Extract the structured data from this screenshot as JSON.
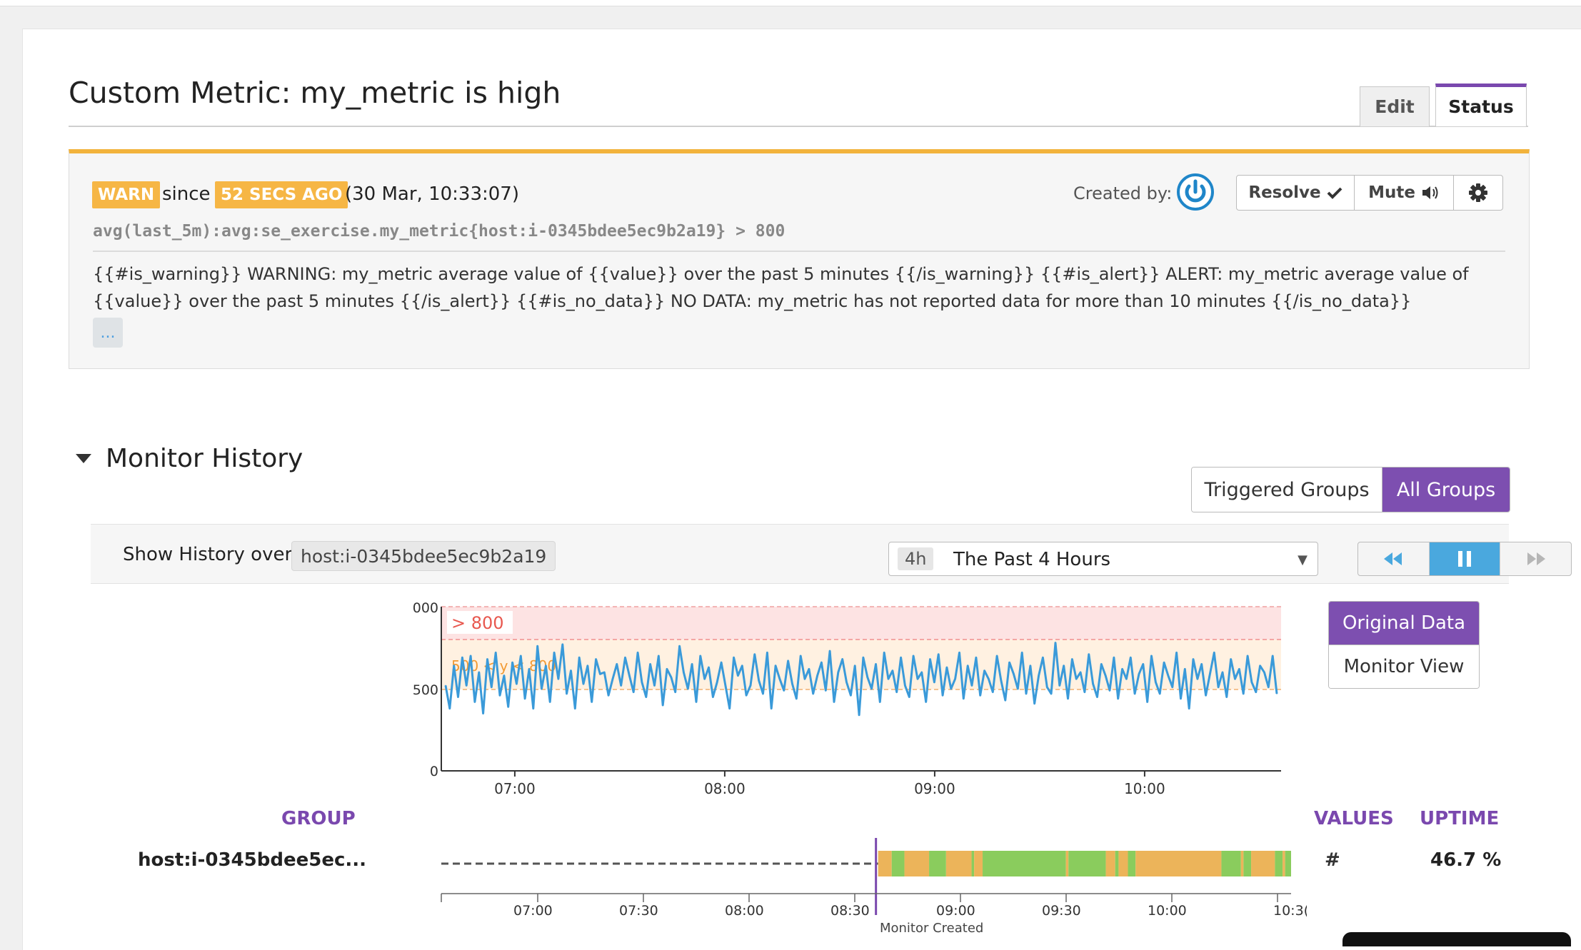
{
  "header": {
    "title": "Custom Metric: my_metric is high"
  },
  "tabs": [
    {
      "label": "Edit"
    },
    {
      "label": "Status",
      "active": true
    }
  ],
  "alert": {
    "state": "WARN",
    "since_label": "since",
    "ago": "52 SECS AGO",
    "timestamp": "(30 Mar, 10:33:07)",
    "query": "avg(last_5m):avg:se_exercise.my_metric{host:i-0345bdee5ec9b2a19} > 800",
    "message": "{{#is_warning}} WARNING: my_metric average value of {{value}} over the past 5 minutes {{/is_warning}} {{#is_alert}} ALERT: my_metric average value of {{value}} over the past 5 minutes {{/is_alert}} {{#is_no_data}} NO DATA: my_metric has not reported data for more than 10 minutes {{/is_no_data}}",
    "more_label": "...",
    "created_by_label": "Created by:",
    "avatar_icon": "power-icon",
    "actions": {
      "resolve": "Resolve",
      "mute": "Mute",
      "settings_icon": "gear-icon"
    },
    "accent_color": "#f2b33c"
  },
  "history": {
    "title": "Monitor History",
    "groups_toggle": {
      "triggered": "Triggered Groups",
      "all": "All Groups",
      "selected": "all"
    },
    "show_history_label": "Show History over",
    "host_tag": "host:i-0345bdee5ec9b2a19",
    "range": {
      "short": "4h",
      "label": "The Past 4 Hours"
    },
    "player_icons": [
      "rewind-icon",
      "pause-icon",
      "fast-forward-icon"
    ],
    "view_toggle": {
      "original": "Original Data",
      "monitor": "Monitor View",
      "selected": "original"
    },
    "columns": {
      "group": "GROUP",
      "values": "VALUES",
      "uptime": "UPTIME"
    },
    "row": {
      "host": "host:i-0345bdee5ec...",
      "values": "#",
      "uptime": "46.7 %"
    }
  },
  "chart_data": [
    {
      "type": "line",
      "x_ticks": [
        "07:00",
        "08:00",
        "09:00",
        "10:00"
      ],
      "y_ticks": [
        "000",
        "500",
        "0"
      ],
      "ylim": [
        0,
        1000
      ],
      "x_range_hours": [
        6.65,
        10.65
      ],
      "thresholds": {
        "alert_label": "> 800",
        "alert": 800,
        "warning_label": "500 < y < 800",
        "warning": 500
      },
      "colors": {
        "line": "#3a9ad9",
        "alert_band": "#fde3e3",
        "warn_band": "#fff1e1"
      },
      "series": [
        {
          "values": [
            520,
            380,
            640,
            450,
            690,
            520,
            700,
            420,
            600,
            350,
            680,
            510,
            720,
            460,
            580,
            390,
            660,
            530,
            700,
            440,
            620,
            380,
            760,
            500,
            640,
            420,
            720,
            560,
            770,
            470,
            610,
            380,
            690,
            530,
            640,
            420,
            680,
            590,
            600,
            460,
            560,
            650,
            520,
            690,
            580,
            480,
            720,
            540,
            450,
            650,
            520,
            700,
            400,
            620,
            570,
            480,
            760,
            600,
            500,
            650,
            420,
            700,
            560,
            630,
            450,
            540,
            660,
            520,
            380,
            690,
            580,
            640,
            460,
            520,
            710,
            550,
            470,
            720,
            380,
            640,
            560,
            490,
            670,
            530,
            440,
            700,
            560,
            620,
            470,
            580,
            660,
            490,
            730,
            420,
            600,
            680,
            540,
            460,
            640,
            340,
            690,
            570,
            500,
            650,
            420,
            720,
            560,
            610,
            480,
            690,
            520,
            450,
            700,
            560,
            600,
            420,
            680,
            540,
            710,
            460,
            630,
            500,
            560,
            720,
            440,
            640,
            520,
            690,
            460,
            610,
            560,
            480,
            700,
            550,
            430,
            660,
            590,
            500,
            720,
            470,
            640,
            410,
            580,
            690,
            510,
            470,
            780,
            520,
            640,
            440,
            680,
            560,
            600,
            480,
            710,
            530,
            450,
            650,
            580,
            490,
            690,
            440,
            620,
            560,
            690,
            470,
            590,
            650,
            420,
            700,
            540,
            470,
            660,
            580,
            510,
            720,
            440,
            620,
            380,
            680,
            560,
            650,
            460,
            590,
            720,
            510,
            600,
            450,
            680,
            560,
            620,
            470,
            700,
            540,
            480,
            640,
            600,
            510,
            700,
            470
          ]
        }
      ]
    },
    {
      "type": "status-timeline",
      "x_ticks": [
        "07:00",
        "07:30",
        "08:00",
        "08:30",
        "09:00",
        "09:30",
        "10:00",
        "10:3("
      ],
      "event_label": "Monitor Created",
      "status_colors": {
        "warn": "#ecb45a",
        "ok": "#8acc5d",
        "no_data": "#555555",
        "event": "#7a48ae"
      },
      "segments": [
        [
          "no_data",
          0,
          0.514
        ],
        [
          "warn",
          0.514,
          0.53
        ],
        [
          "ok",
          0.53,
          0.545
        ],
        [
          "warn",
          0.545,
          0.574
        ],
        [
          "ok",
          0.574,
          0.594
        ],
        [
          "warn",
          0.594,
          0.624
        ],
        [
          "ok",
          0.624,
          0.627
        ],
        [
          "warn",
          0.627,
          0.637
        ],
        [
          "ok",
          0.637,
          0.735
        ],
        [
          "warn",
          0.735,
          0.738
        ],
        [
          "ok",
          0.738,
          0.782
        ],
        [
          "warn",
          0.782,
          0.793
        ],
        [
          "ok",
          0.793,
          0.797
        ],
        [
          "warn",
          0.797,
          0.808
        ],
        [
          "ok",
          0.808,
          0.817
        ],
        [
          "warn",
          0.817,
          0.918
        ],
        [
          "ok",
          0.918,
          0.941
        ],
        [
          "warn",
          0.941,
          0.944
        ],
        [
          "ok",
          0.944,
          0.953
        ],
        [
          "warn",
          0.953,
          0.981
        ],
        [
          "ok",
          0.981,
          0.99
        ],
        [
          "warn",
          0.99,
          0.993
        ],
        [
          "ok",
          0.993,
          1.0
        ]
      ]
    }
  ]
}
